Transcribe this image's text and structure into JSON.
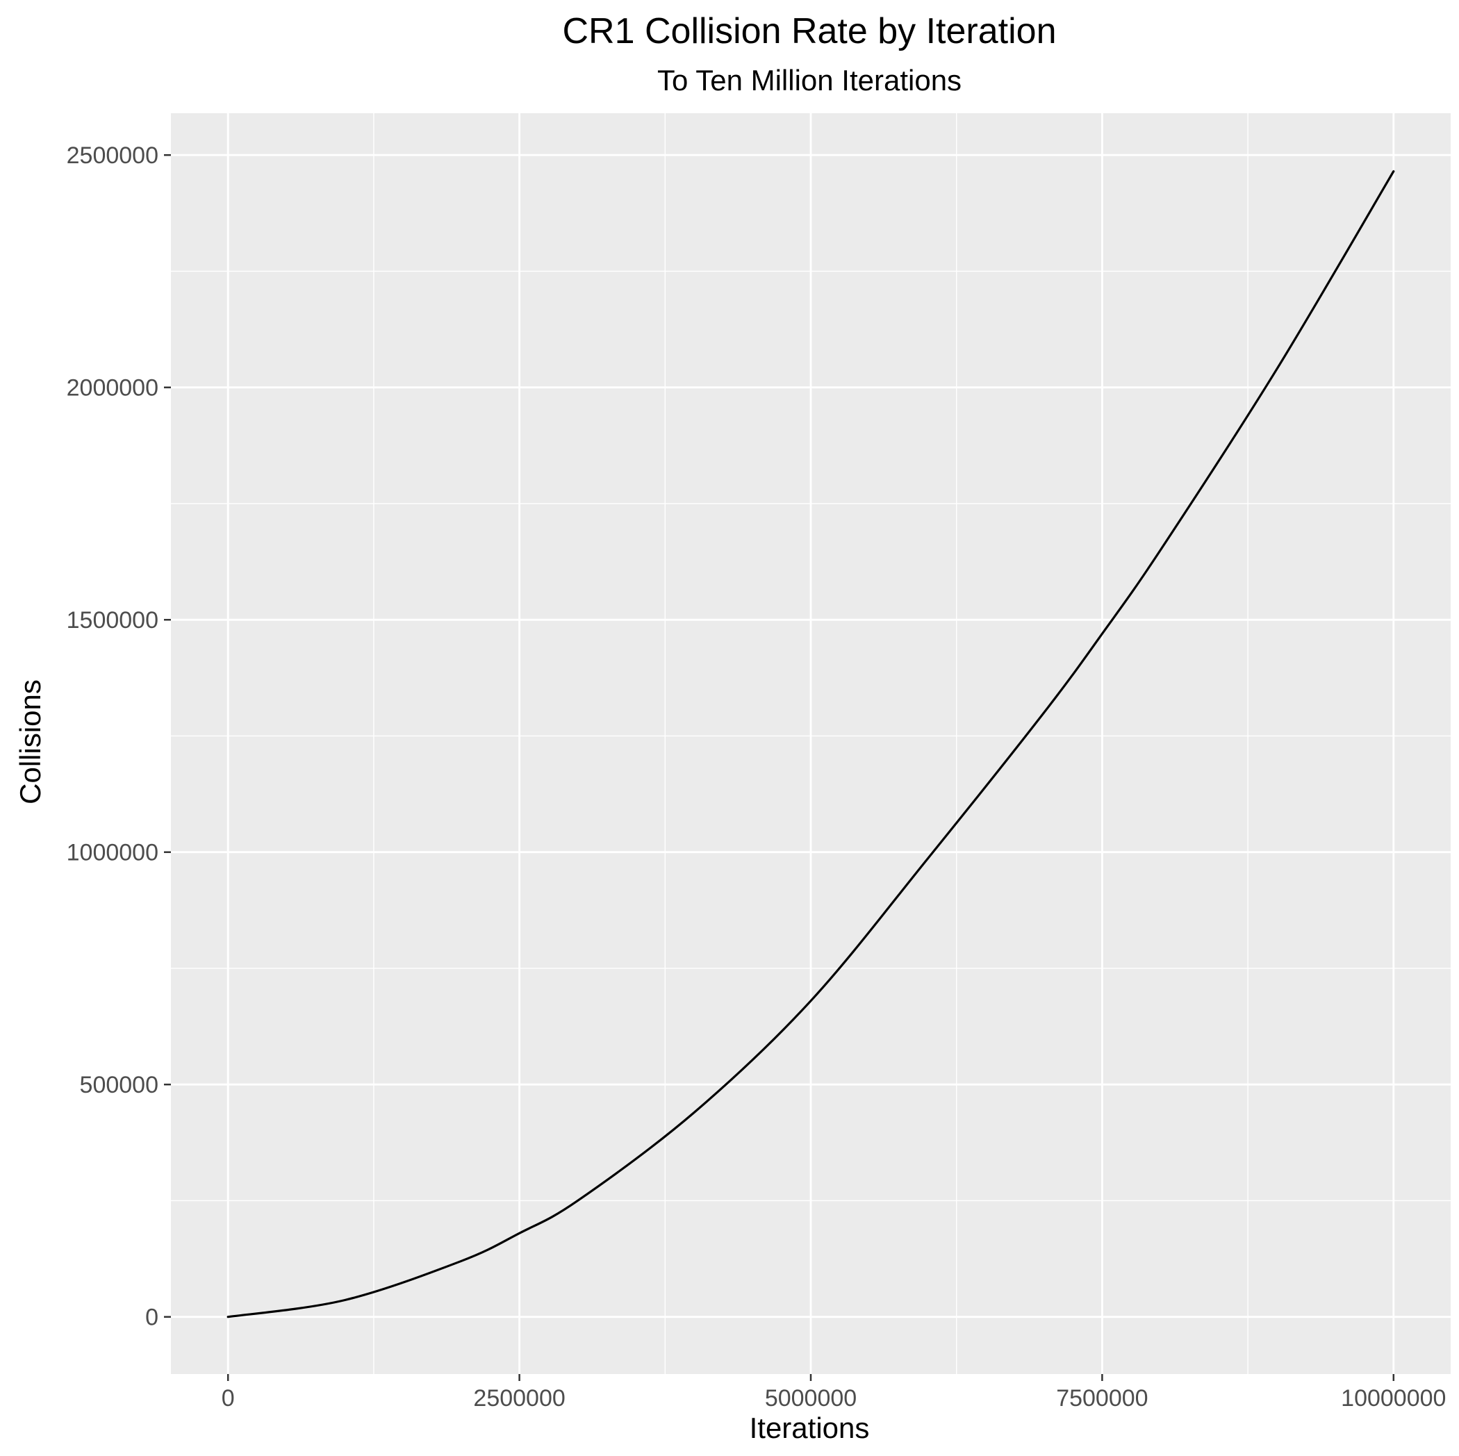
{
  "chart_data": {
    "type": "line",
    "title": "CR1 Collision Rate by Iteration",
    "subtitle": "To Ten Million Iterations",
    "xlabel": "Iterations",
    "ylabel": "Collisions",
    "xlim": [
      -490000,
      10490000
    ],
    "ylim": [
      -123000,
      2590000
    ],
    "x_ticks": [
      0,
      2500000,
      5000000,
      7500000,
      10000000
    ],
    "x_tick_labels": [
      "0",
      "2500000",
      "5000000",
      "7500000",
      "10000000"
    ],
    "y_ticks": [
      0,
      500000,
      1000000,
      1500000,
      2000000,
      2500000
    ],
    "y_tick_labels": [
      "0",
      "500000",
      "1000000",
      "1500000",
      "2000000",
      "2500000"
    ],
    "grid": true,
    "legend": "none",
    "colors": {
      "panel": "#ebebeb",
      "grid": "#ffffff",
      "line": "#000000"
    },
    "series": [
      {
        "x": [
          0,
          1000000,
          2000000,
          2500000,
          3000000,
          4000000,
          5000000,
          6000000,
          7000000,
          7500000,
          8000000,
          9000000,
          10000000
        ],
        "values": [
          0,
          36000,
          120000,
          180000,
          250000,
          440000,
          680000,
          985000,
          1300000,
          1470000,
          1650000,
          2040000,
          2465000
        ]
      }
    ]
  }
}
